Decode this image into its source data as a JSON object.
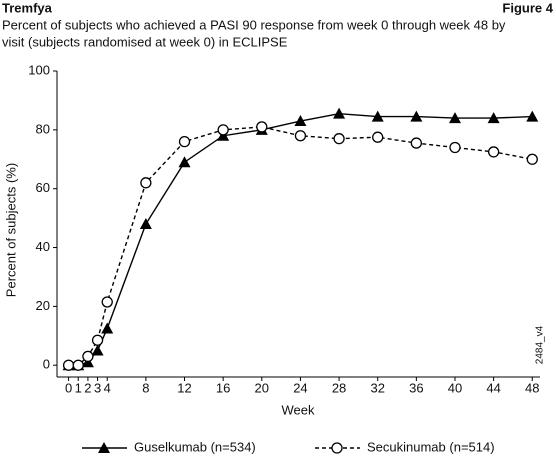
{
  "chart_data": {
    "type": "line",
    "header_left": "Tremfya",
    "header_right": "Figure 4",
    "title": [
      "Percent of subjects who achieved a PASI 90 response from week 0 through week 48 by",
      "visit (subjects randomised at week 0) in ECLIPSE"
    ],
    "x_label": "Week",
    "y_label": "Percent of subjects (%)",
    "annotation": "2484_v4",
    "x": [
      0,
      1,
      2,
      3,
      4,
      8,
      12,
      16,
      20,
      24,
      28,
      32,
      36,
      40,
      44,
      48
    ],
    "series": [
      {
        "name": "Guselkumab (n=534)",
        "color": "#000000",
        "marker": "triangle",
        "dash": false,
        "values": [
          0,
          0,
          1,
          5,
          12.5,
          48,
          69,
          78,
          80,
          83,
          85.5,
          84.5,
          84.5,
          84,
          84,
          84.5
        ]
      },
      {
        "name": "Secukinumab (n=514)",
        "color": "#000000",
        "marker": "circle",
        "dash": true,
        "values": [
          0,
          0,
          3,
          8.5,
          21.5,
          62,
          76,
          80,
          81,
          78,
          77,
          77.5,
          75.5,
          74,
          72.5,
          70
        ]
      }
    ],
    "xlim": [
      -1.2,
      48.8
    ],
    "ylim": [
      -4,
      100
    ],
    "xticks": [
      0,
      1,
      2,
      3,
      4,
      8,
      12,
      16,
      20,
      24,
      28,
      32,
      36,
      40,
      44,
      48
    ],
    "yticks": [
      0,
      20,
      40,
      60,
      80,
      100
    ],
    "grid": false,
    "legend": "bottom"
  }
}
